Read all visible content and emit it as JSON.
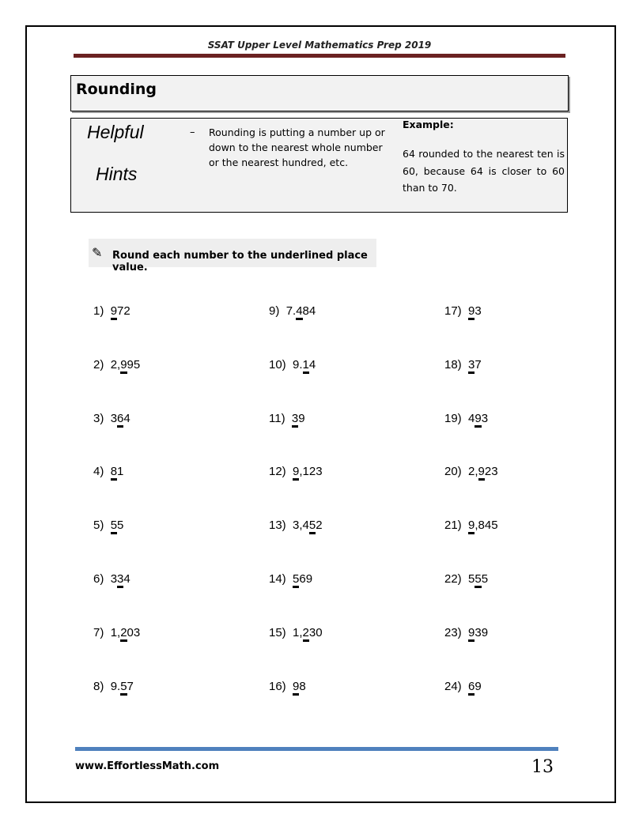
{
  "header": {
    "title": "SSAT Upper Level Mathematics Prep 2019"
  },
  "section": {
    "title": "Rounding"
  },
  "hints": {
    "word1": "Helpful",
    "word2": "Hints",
    "dash": "–",
    "text": "Rounding is putting a number up or down to the nearest whole number or the nearest hundred, etc.",
    "example_label": "Example:",
    "example_text": "64 rounded to the nearest ten is 60, because 64 is closer to 60 than to 70."
  },
  "instruction": {
    "icon": "pencil-icon",
    "text": "Round each number to the underlined place value."
  },
  "problems": [
    {
      "n": "1)",
      "pre": "",
      "u": "9",
      "post": "72"
    },
    {
      "n": "2)",
      "pre": "2,",
      "u": "9",
      "post": "95"
    },
    {
      "n": "3)",
      "pre": "3",
      "u": "6",
      "post": "4"
    },
    {
      "n": "4)",
      "pre": "",
      "u": "8",
      "post": "1"
    },
    {
      "n": "5)",
      "pre": "",
      "u": "5",
      "post": "5"
    },
    {
      "n": "6)",
      "pre": "3",
      "u": "3",
      "post": "4"
    },
    {
      "n": "7)",
      "pre": "1,",
      "u": "2",
      "post": "03"
    },
    {
      "n": "8)",
      "pre": "9.",
      "u": "5",
      "post": "7"
    },
    {
      "n": "9)",
      "pre": "7.",
      "u": "4",
      "post": "84"
    },
    {
      "n": "10)",
      "pre": "9.",
      "u": "1",
      "post": "4"
    },
    {
      "n": "11)",
      "pre": "",
      "u": "3",
      "post": "9"
    },
    {
      "n": "12)",
      "pre": "",
      "u": "9",
      "post": ",123"
    },
    {
      "n": "13)",
      "pre": "3,4",
      "u": "5",
      "post": "2"
    },
    {
      "n": "14)",
      "pre": "",
      "u": "5",
      "post": "69"
    },
    {
      "n": "15)",
      "pre": "1,",
      "u": "2",
      "post": "30"
    },
    {
      "n": "16)",
      "pre": "",
      "u": "9",
      "post": "8"
    },
    {
      "n": "17)",
      "pre": "",
      "u": "9",
      "post": "3"
    },
    {
      "n": "18)",
      "pre": "",
      "u": "3",
      "post": "7"
    },
    {
      "n": "19)",
      "pre": "4",
      "u": "9",
      "post": "3"
    },
    {
      "n": "20)",
      "pre": "2,",
      "u": "9",
      "post": "23"
    },
    {
      "n": "21)",
      "pre": "",
      "u": "9",
      "post": ",845"
    },
    {
      "n": "22)",
      "pre": "5",
      "u": "5",
      "post": "5"
    },
    {
      "n": "23)",
      "pre": "",
      "u": "9",
      "post": "39"
    },
    {
      "n": "24)",
      "pre": "",
      "u": "6",
      "post": "9"
    }
  ],
  "footer": {
    "website": "www.EffortlessMath.com",
    "page_number": "13"
  },
  "colors": {
    "header_bar": "#6b2222",
    "footer_bar": "#4f81bd"
  }
}
